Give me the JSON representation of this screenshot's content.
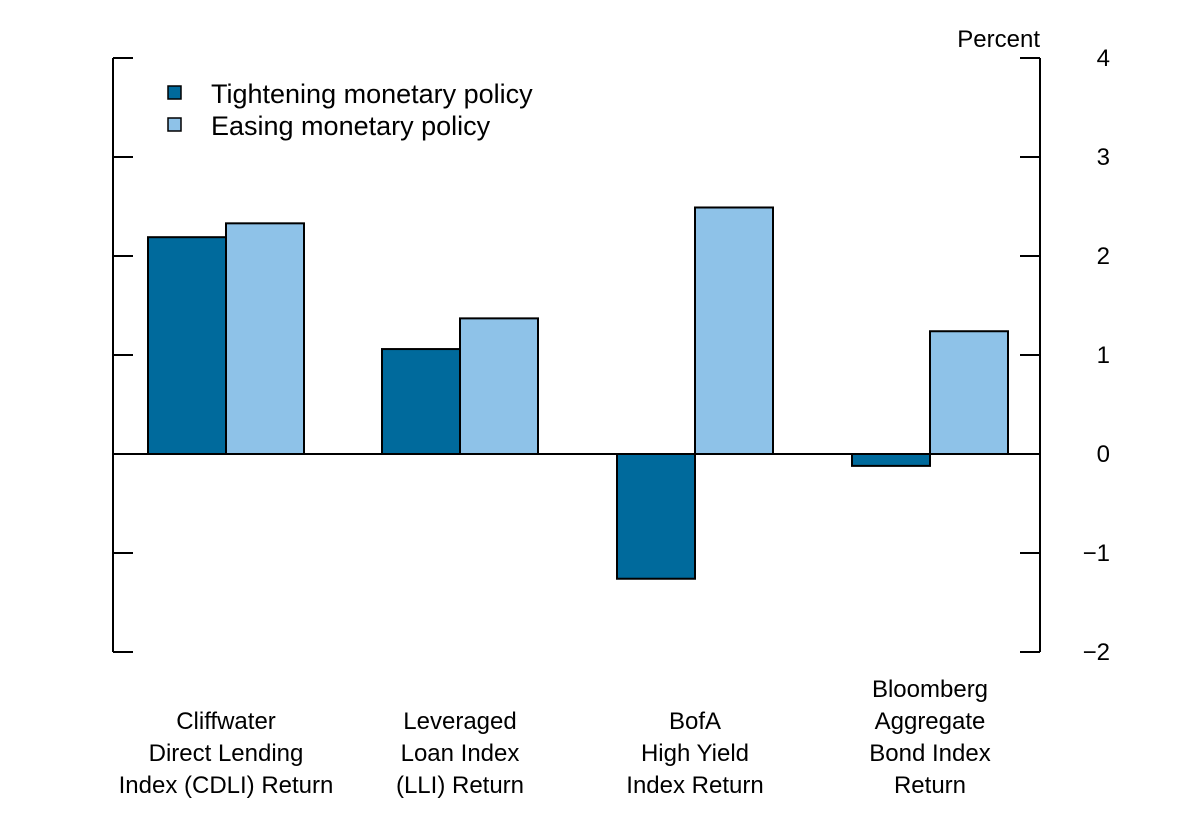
{
  "chart_data": {
    "type": "bar",
    "title": "",
    "ylabel": "Percent",
    "ylim": [
      -2,
      4
    ],
    "yticks": [
      4,
      3,
      2,
      1,
      0,
      -1,
      -2
    ],
    "ytick_labels": [
      "4",
      "3",
      "2",
      "1",
      "0",
      "−1",
      "−2"
    ],
    "categories": [
      [
        "Cliffwater",
        "Direct Lending",
        "Index (CDLI) Return"
      ],
      [
        "Leveraged",
        "Loan Index",
        "(LLI) Return"
      ],
      [
        "BofA",
        "High Yield",
        "Index Return"
      ],
      [
        "Bloomberg",
        "Aggregate",
        "Bond Index",
        "Return"
      ]
    ],
    "series": [
      {
        "name": "Tightening monetary policy",
        "color": "#006a9c",
        "values": [
          2.19,
          1.06,
          -1.26,
          -0.12
        ]
      },
      {
        "name": "Easing monetary policy",
        "color": "#8ec2e8",
        "values": [
          2.33,
          1.37,
          2.49,
          1.24
        ]
      }
    ],
    "legend_position": "top-left",
    "grid": false
  }
}
